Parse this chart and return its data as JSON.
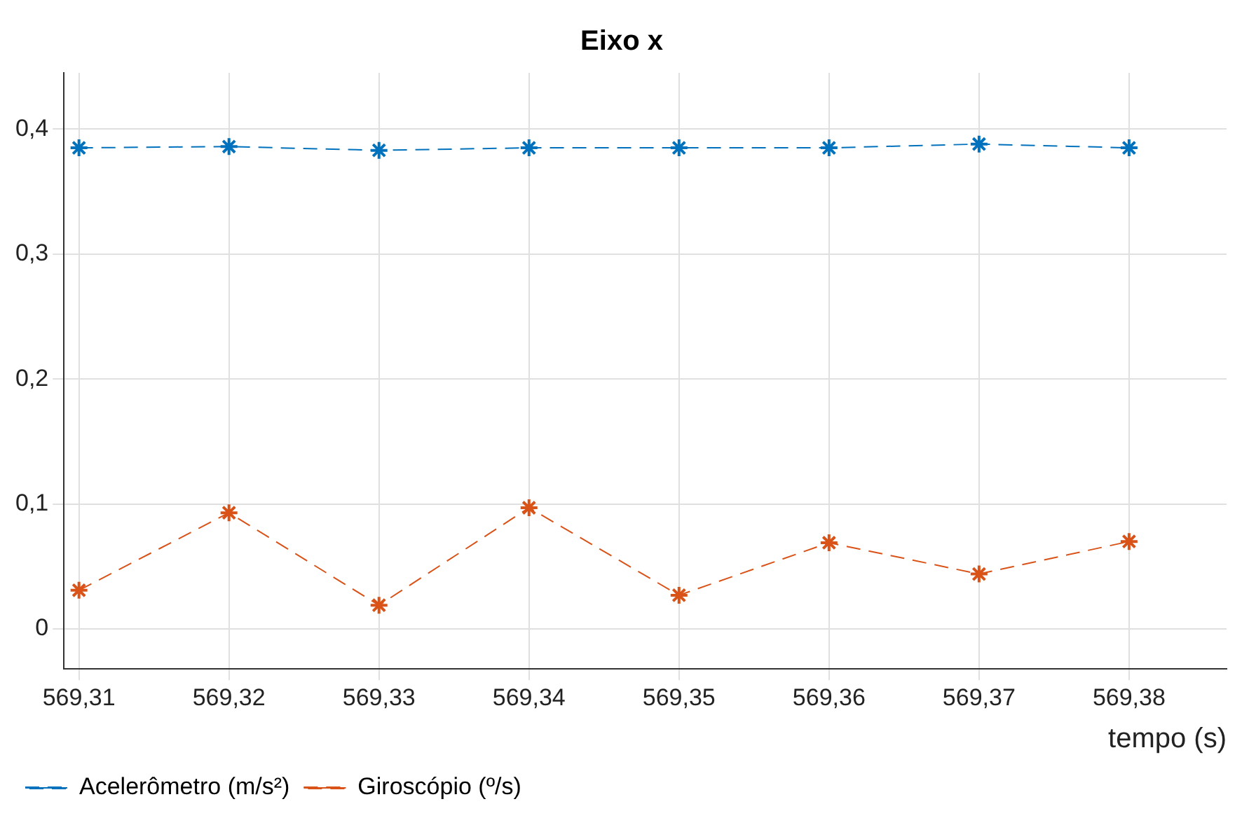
{
  "chart_data": {
    "type": "line",
    "title": "Eixo x",
    "xlabel": "tempo (s)",
    "x": [
      569.31,
      569.32,
      569.33,
      569.34,
      569.35,
      569.36,
      569.37,
      569.38
    ],
    "series": [
      {
        "name": "Acelerômetro (m/s²)",
        "color": "#0072bd",
        "values": [
          0.385,
          0.386,
          0.383,
          0.385,
          0.385,
          0.385,
          0.388,
          0.385
        ]
      },
      {
        "name": "Giroscópio (º/s)",
        "color": "#d95319",
        "values": [
          0.031,
          0.093,
          0.019,
          0.097,
          0.027,
          0.069,
          0.044,
          0.07
        ]
      }
    ],
    "xlim": [
      569.309,
      569.3865
    ],
    "ylim": [
      -0.032,
      0.445
    ],
    "xticks": [
      {
        "value": 569.31,
        "label": "569,31"
      },
      {
        "value": 569.32,
        "label": "569,32"
      },
      {
        "value": 569.33,
        "label": "569,33"
      },
      {
        "value": 569.34,
        "label": "569,34"
      },
      {
        "value": 569.35,
        "label": "569,35"
      },
      {
        "value": 569.36,
        "label": "569,36"
      },
      {
        "value": 569.37,
        "label": "569,37"
      },
      {
        "value": 569.38,
        "label": "569,38"
      }
    ],
    "yticks": [
      {
        "value": 0,
        "label": "0"
      },
      {
        "value": 0.1,
        "label": "0,1"
      },
      {
        "value": 0.2,
        "label": "0,2"
      },
      {
        "value": 0.3,
        "label": "0,3"
      },
      {
        "value": 0.4,
        "label": "0,4"
      }
    ],
    "grid": true,
    "legend": "bottom left",
    "marker": "cross",
    "line_style": "dashed"
  }
}
